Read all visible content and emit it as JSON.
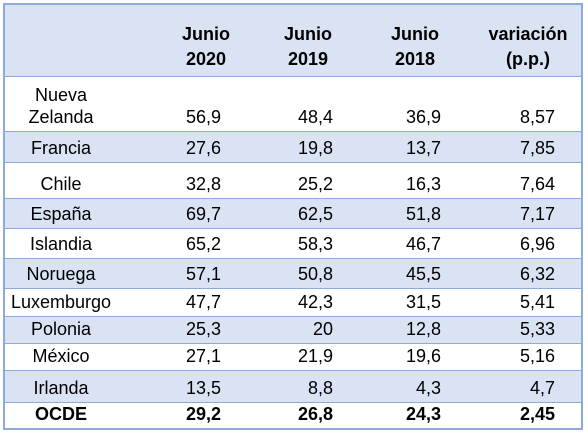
{
  "table": {
    "headers": {
      "country": "",
      "col1": "Junio\n2020",
      "col2": "Junio\n2019",
      "col3": "Junio\n2018",
      "col4": "variación\n(p.p.)"
    },
    "rows": [
      {
        "country": "Nueva\nZelanda",
        "v2020": "56,9",
        "v2019": "48,4",
        "v2018": "36,9",
        "var": "8,57"
      },
      {
        "country": "Francia",
        "v2020": "27,6",
        "v2019": "19,8",
        "v2018": "13,7",
        "var": "7,85"
      },
      {
        "country": "Chile",
        "v2020": "32,8",
        "v2019": "25,2",
        "v2018": "16,3",
        "var": "7,64"
      },
      {
        "country": "España",
        "v2020": "69,7",
        "v2019": "62,5",
        "v2018": "51,8",
        "var": "7,17"
      },
      {
        "country": "Islandia",
        "v2020": "65,2",
        "v2019": "58,3",
        "v2018": "46,7",
        "var": "6,96"
      },
      {
        "country": "Noruega",
        "v2020": "57,1",
        "v2019": "50,8",
        "v2018": "45,5",
        "var": "6,32"
      },
      {
        "country": "Luxemburgo",
        "v2020": "47,7",
        "v2019": "42,3",
        "v2018": "31,5",
        "var": "5,41"
      },
      {
        "country": "Polonia",
        "v2020": "25,3",
        "v2019": "20",
        "v2018": "12,8",
        "var": "5,33"
      },
      {
        "country": "México",
        "v2020": "27,1",
        "v2019": "21,9",
        "v2018": "19,6",
        "var": "5,16"
      },
      {
        "country": "Irlanda",
        "v2020": "13,5",
        "v2019": "8,8",
        "v2018": "4,3",
        "var": "4,7"
      },
      {
        "country": "OCDE",
        "v2020": "29,2",
        "v2019": "26,8",
        "v2018": "24,3",
        "var": "2,45"
      }
    ]
  },
  "colors": {
    "shade": "#dae3f3",
    "border": "#8eaadb"
  }
}
